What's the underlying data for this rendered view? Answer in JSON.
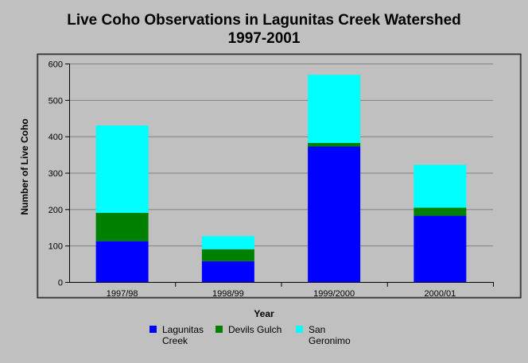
{
  "chart_data": {
    "type": "bar",
    "stacked": true,
    "title": "Live Coho Observations in Lagunitas Creek Watershed",
    "subtitle": "1997-2001",
    "xlabel": "Year",
    "ylabel": "Number of Live Coho",
    "ylim": [
      0,
      600
    ],
    "yticks": [
      0,
      100,
      200,
      300,
      400,
      500,
      600
    ],
    "grid": true,
    "legend_position": "bottom",
    "categories": [
      "1997/98",
      "1998/99",
      "1999/2000",
      "2000/01"
    ],
    "series": [
      {
        "name": "Lagunitas Creek",
        "legend_lines": [
          "Lagunitas",
          "Creek"
        ],
        "color": "#0000ff",
        "values": [
          112,
          57,
          372,
          182
        ]
      },
      {
        "name": "Devils Gulch",
        "legend_lines": [
          "Devils Gulch"
        ],
        "color": "#008000",
        "values": [
          78,
          33,
          10,
          22
        ]
      },
      {
        "name": "San Geronimo",
        "legend_lines": [
          "San",
          "Geronimo"
        ],
        "color": "#00ffff",
        "values": [
          240,
          36,
          187,
          118
        ]
      }
    ]
  }
}
